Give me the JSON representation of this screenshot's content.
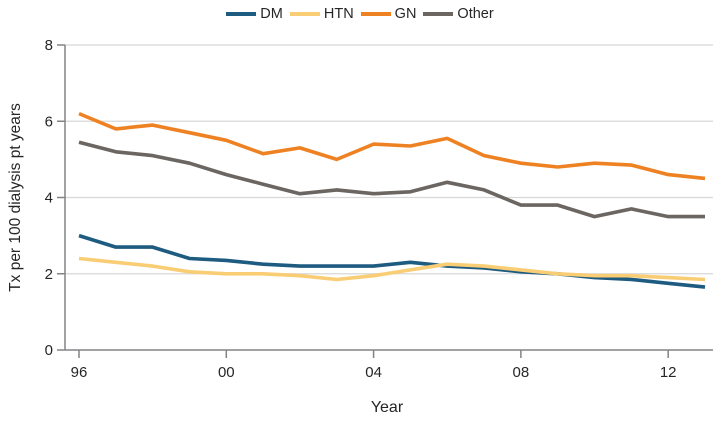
{
  "chart_data": {
    "type": "line",
    "title": "",
    "xlabel": "Year",
    "ylabel": "Tx per 100 dialysis pt years",
    "x": [
      1996,
      1997,
      1998,
      1999,
      2000,
      2001,
      2002,
      2003,
      2004,
      2005,
      2006,
      2007,
      2008,
      2009,
      2010,
      2011,
      2012,
      2013
    ],
    "series": [
      {
        "name": "DM",
        "color": "#1e5b80",
        "values": [
          3.0,
          2.7,
          2.7,
          2.4,
          2.35,
          2.25,
          2.2,
          2.2,
          2.2,
          2.3,
          2.2,
          2.15,
          2.05,
          2.0,
          1.9,
          1.85,
          1.75,
          1.65
        ]
      },
      {
        "name": "HTN",
        "color": "#f9cd74",
        "values": [
          2.4,
          2.3,
          2.2,
          2.05,
          2.0,
          2.0,
          1.95,
          1.85,
          1.95,
          2.1,
          2.25,
          2.2,
          2.1,
          2.0,
          1.95,
          1.95,
          1.9,
          1.85
        ]
      },
      {
        "name": "GN",
        "color": "#ee8223",
        "values": [
          6.2,
          5.8,
          5.9,
          5.7,
          5.5,
          5.15,
          5.3,
          5.0,
          5.4,
          5.35,
          5.55,
          5.1,
          4.9,
          4.8,
          4.9,
          4.85,
          4.6,
          4.5
        ]
      },
      {
        "name": "Other",
        "color": "#6b6661",
        "values": [
          5.45,
          5.2,
          5.1,
          4.9,
          4.6,
          4.35,
          4.1,
          4.2,
          4.1,
          4.15,
          4.4,
          4.2,
          3.8,
          3.8,
          3.5,
          3.7,
          3.5,
          3.5
        ]
      }
    ],
    "ylim": [
      0,
      8
    ],
    "yticks": [
      {
        "value": 0,
        "label": "0"
      },
      {
        "value": 2,
        "label": "2"
      },
      {
        "value": 4,
        "label": "4"
      },
      {
        "value": 6,
        "label": "6"
      },
      {
        "value": 8,
        "label": "8"
      }
    ],
    "xticks": [
      {
        "value": 1996,
        "label": "96"
      },
      {
        "value": 2000,
        "label": "00"
      },
      {
        "value": 2004,
        "label": "04"
      },
      {
        "value": 2008,
        "label": "08"
      },
      {
        "value": 2012,
        "label": "12"
      }
    ],
    "grid": true,
    "legend_position": "top-center",
    "colors": {
      "axis": "#818386",
      "gridline": "#d8d8d8",
      "text": "#262626"
    }
  }
}
